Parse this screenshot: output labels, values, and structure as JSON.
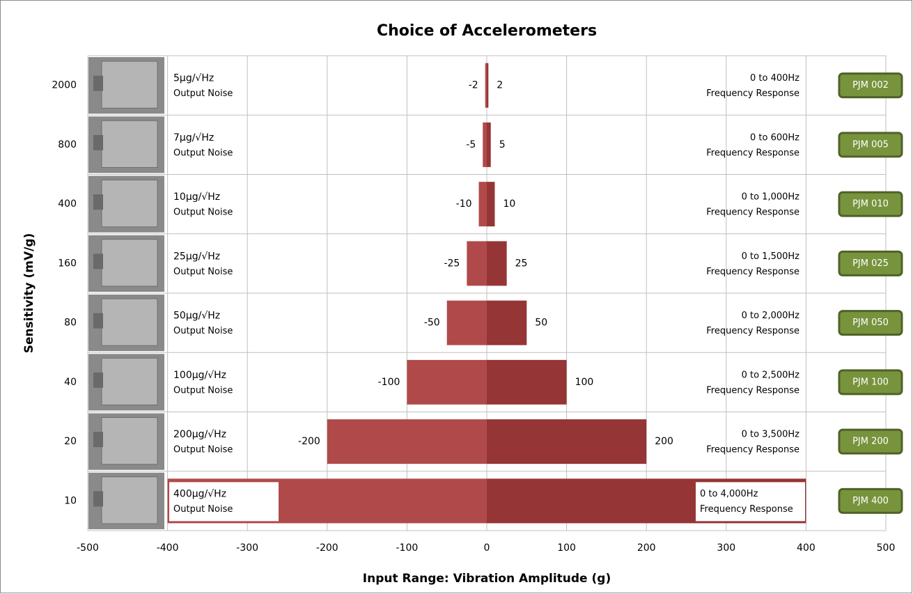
{
  "chart_data": {
    "type": "butterfly-bar",
    "title": "Choice of Accelerometers",
    "x_label": "Input Range: Vibration Amplitude (g)",
    "y_label": "Sensitivity (mV/g)",
    "categories": [
      "2000",
      "800",
      "400",
      "160",
      "80",
      "40",
      "20",
      "10"
    ],
    "series": [
      {
        "color": "#b04a4a",
        "values": [
          -2,
          -5,
          -10,
          -25,
          -50,
          -100,
          -200,
          -400
        ],
        "value_labels": [
          "-2",
          "-5",
          "-10",
          "-25",
          "-50",
          "-100",
          "-200",
          null
        ]
      },
      {
        "color": "#953536",
        "values": [
          2,
          5,
          10,
          25,
          50,
          100,
          200,
          400
        ],
        "value_labels": [
          "2",
          "5",
          "10",
          "25",
          "50",
          "100",
          "200",
          null
        ]
      }
    ],
    "xlim": [
      -500,
      500
    ],
    "xticks": [
      -500,
      -400,
      -300,
      -200,
      -100,
      0,
      100,
      200,
      300,
      400,
      500
    ],
    "grid": true,
    "noise": [
      "5μg/√Hz",
      "7μg/√Hz",
      "10μg/√Hz",
      "25μg/√Hz",
      "50μg/√Hz",
      "100μg/√Hz",
      "200μg/√Hz",
      "400μg/√Hz"
    ],
    "noise_caption": "Output Noise",
    "frequency": [
      "0 to 400Hz",
      "0 to 600Hz",
      "0 to 1,000Hz",
      "0 to 1,500Hz",
      "0 to 2,000Hz",
      "0 to 2,500Hz",
      "0 to 3,500Hz",
      "0 to 4,000Hz"
    ],
    "frequency_caption": "Frequency Response",
    "models": [
      "PJM 002",
      "PJM 005",
      "PJM 010",
      "PJM 025",
      "PJM 050",
      "PJM 100",
      "PJM 200",
      "PJM 400"
    ]
  }
}
